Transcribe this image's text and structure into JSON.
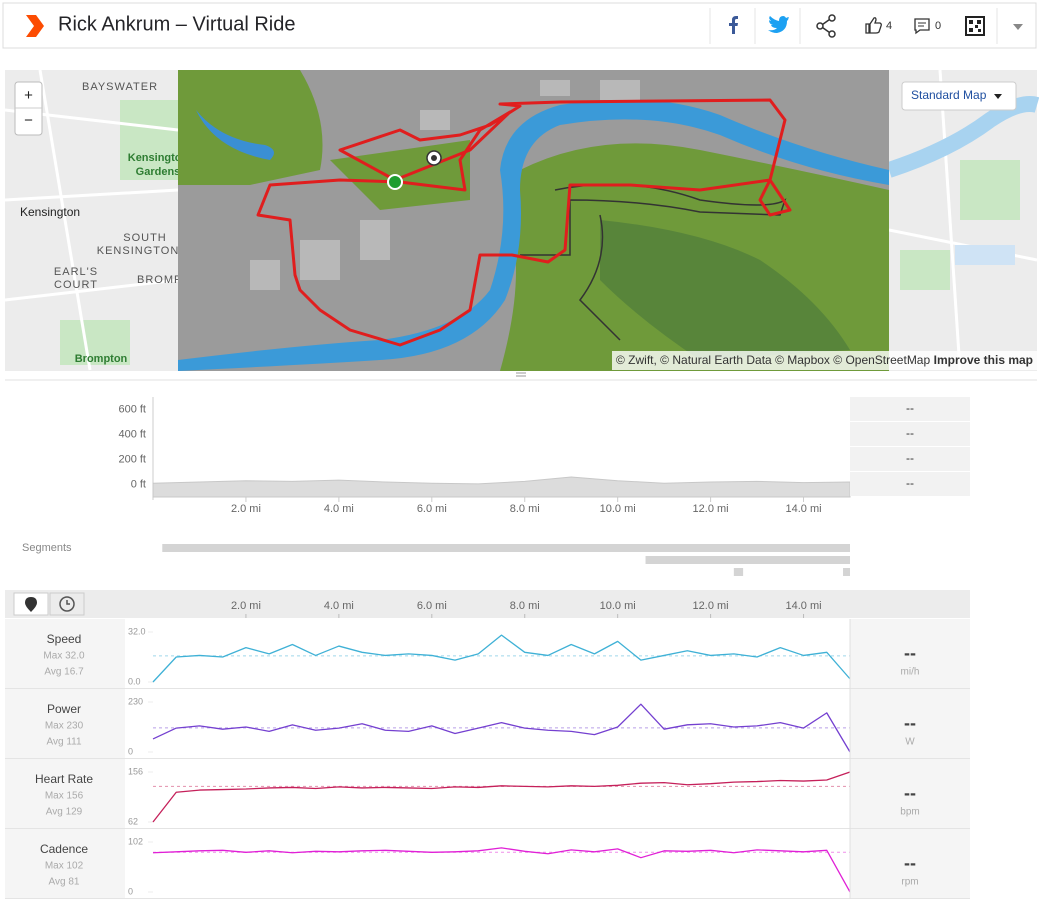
{
  "header": {
    "title": "Rick Ankrum – Virtual Ride",
    "kudos_count": 4,
    "comment_count": 0
  },
  "map": {
    "zoom_in": "+",
    "zoom_out": "−",
    "style_button": "Standard Map",
    "place_labels": [
      "BAYSWATER",
      "Kensington",
      "Gardens",
      "Kensington",
      "SOUTH",
      "KENSINGTON",
      "EARL'S",
      "COURT",
      "BROMPTON",
      "Brompton"
    ],
    "attribution": "© Zwift, © Natural Earth Data © Mapbox © OpenStreetMap",
    "improve_link": "Improve this map"
  },
  "elevation": {
    "xlim": [
      0,
      15
    ],
    "ylim": [
      -100,
      700
    ],
    "yticks": [
      {
        "value": 600,
        "label": "600 ft"
      },
      {
        "value": 400,
        "label": "400 ft"
      },
      {
        "value": 200,
        "label": "200 ft"
      },
      {
        "value": 0,
        "label": "0 ft"
      }
    ],
    "xticks": [
      {
        "value": 2,
        "label": "2.0 mi"
      },
      {
        "value": 4,
        "label": "4.0 mi"
      },
      {
        "value": 6,
        "label": "6.0 mi"
      },
      {
        "value": 8,
        "label": "8.0 mi"
      },
      {
        "value": 10,
        "label": "10.0 mi"
      },
      {
        "value": 12,
        "label": "12.0 mi"
      },
      {
        "value": 14,
        "label": "14.0 mi"
      }
    ],
    "x": [
      0,
      1,
      2,
      3,
      4,
      5,
      6,
      7,
      8,
      9,
      10,
      11,
      12,
      13,
      14,
      15
    ],
    "values": [
      10,
      20,
      30,
      25,
      35,
      20,
      10,
      5,
      25,
      60,
      30,
      10,
      20,
      25,
      15,
      20
    ],
    "summary": [
      "--",
      "--",
      "--",
      "--"
    ]
  },
  "segments": {
    "label": "Segments",
    "ranges": [
      [
        0.2,
        15
      ],
      [
        10.6,
        15
      ],
      [
        12.5,
        12.7
      ],
      [
        14.85,
        15
      ]
    ]
  },
  "streams": {
    "xlim": [
      0,
      15
    ],
    "xticks": [
      {
        "value": 2,
        "label": "2.0 mi"
      },
      {
        "value": 4,
        "label": "4.0 mi"
      },
      {
        "value": 6,
        "label": "6.0 mi"
      },
      {
        "value": 8,
        "label": "8.0 mi"
      },
      {
        "value": 10,
        "label": "10.0 mi"
      },
      {
        "value": 12,
        "label": "12.0 mi"
      },
      {
        "value": 14,
        "label": "14.0 mi"
      }
    ],
    "x": [
      0,
      0.5,
      1,
      1.5,
      2,
      2.5,
      3,
      3.5,
      4,
      4.5,
      5,
      5.5,
      6,
      6.5,
      7,
      7.5,
      8,
      8.5,
      9,
      9.5,
      10,
      10.5,
      11,
      11.5,
      12,
      12.5,
      13,
      13.5,
      14,
      14.5,
      15
    ],
    "rows": [
      {
        "name": "Speed",
        "color": "#3fb1d6",
        "max_label": "Max 32.0",
        "avg": {
          "value": 16.7,
          "label": "Avg 16.7"
        },
        "ylim": [
          0,
          32
        ],
        "yticks": [
          {
            "value": 0,
            "label": "0.0"
          },
          {
            "value": 32,
            "label": "32.0"
          }
        ],
        "values": [
          0,
          16,
          17,
          16,
          22,
          18,
          24,
          17,
          23,
          19,
          17,
          18,
          17,
          14,
          18,
          30,
          19,
          17,
          24,
          18,
          26,
          14,
          17,
          20,
          17,
          18,
          16,
          22,
          17,
          19,
          2
        ],
        "current": "--",
        "unit": "mi/h"
      },
      {
        "name": "Power",
        "color": "#7440d0",
        "max_label": "Max 230",
        "avg": {
          "value": 111,
          "label": "Avg 111"
        },
        "ylim": [
          0,
          230
        ],
        "yticks": [
          0,
          230
        ],
        "values": [
          60,
          110,
          120,
          105,
          115,
          95,
          125,
          100,
          110,
          130,
          100,
          95,
          120,
          85,
          110,
          135,
          110,
          100,
          95,
          80,
          115,
          220,
          105,
          125,
          130,
          115,
          120,
          135,
          110,
          180,
          0
        ],
        "current": "--",
        "unit": "W"
      },
      {
        "name": "Heart Rate",
        "color": "#c5205a",
        "max_label": "Max 156",
        "avg": {
          "value": 129,
          "label": "Avg 129"
        },
        "ylim": [
          62,
          156
        ],
        "yticks": [
          62,
          156
        ],
        "values": [
          62,
          118,
          122,
          123,
          124,
          126,
          127,
          125,
          128,
          126,
          127,
          126,
          125,
          128,
          127,
          130,
          129,
          128,
          130,
          129,
          131,
          135,
          136,
          132,
          134,
          137,
          138,
          140,
          139,
          141,
          156
        ],
        "current": "--",
        "unit": "bpm"
      },
      {
        "name": "Cadence",
        "color": "#e020d6",
        "max_label": "Max 102",
        "avg": {
          "value": 81,
          "label": "Avg 81"
        },
        "ylim": [
          0,
          102
        ],
        "yticks": [
          0,
          102
        ],
        "values": [
          80,
          82,
          84,
          85,
          81,
          84,
          80,
          83,
          82,
          84,
          85,
          83,
          81,
          82,
          84,
          90,
          83,
          78,
          86,
          82,
          88,
          70,
          84,
          83,
          85,
          80,
          86,
          84,
          82,
          85,
          0
        ],
        "current": "--",
        "unit": "rpm"
      }
    ]
  }
}
